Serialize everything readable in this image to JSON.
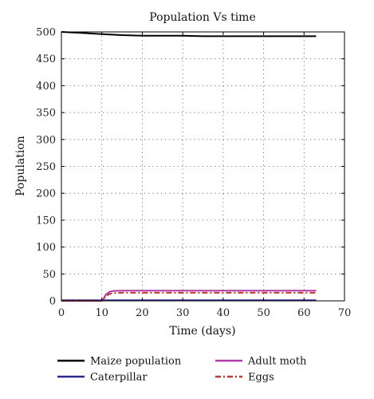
{
  "chart_data": {
    "type": "line",
    "title": "Population Vs time",
    "xlabel": "Time (days)",
    "ylabel": "Population",
    "xlim": [
      0,
      70
    ],
    "ylim": [
      0,
      500
    ],
    "xticks": [
      0,
      10,
      20,
      30,
      40,
      50,
      60,
      70
    ],
    "yticks": [
      0,
      50,
      100,
      150,
      200,
      250,
      300,
      350,
      400,
      450,
      500
    ],
    "grid": true,
    "legend_position": "bottom",
    "series": [
      {
        "name": "Maize population",
        "color": "#000000",
        "dash": "solid",
        "x": [
          0,
          5,
          10,
          15,
          20,
          25,
          30,
          35,
          40,
          45,
          50,
          55,
          60,
          63
        ],
        "y": [
          500,
          498,
          496,
          494,
          493,
          493,
          493,
          492,
          492,
          492,
          492,
          492,
          492,
          492
        ]
      },
      {
        "name": "Adult moth",
        "color": "#b03aa8",
        "dash": "solid",
        "x": [
          0,
          10,
          10.5,
          11,
          12,
          13,
          15,
          20,
          30,
          40,
          50,
          60,
          63
        ],
        "y": [
          0,
          0,
          5,
          12,
          17,
          18.5,
          19,
          19,
          19,
          19,
          19,
          19,
          19
        ]
      },
      {
        "name": "Caterpillar",
        "color": "#2a2a8c",
        "dash": "solid",
        "x": [
          0,
          10,
          20,
          30,
          40,
          50,
          60,
          63
        ],
        "y": [
          1,
          1,
          1,
          1,
          1,
          1,
          1,
          1
        ]
      },
      {
        "name": "Eggs",
        "color": "#c0392b",
        "dash": "dashdot",
        "x": [
          0,
          10,
          10.5,
          11,
          12,
          13,
          15,
          20,
          30,
          40,
          50,
          60,
          63
        ],
        "y": [
          0,
          0,
          4,
          9,
          13,
          14.5,
          15,
          15,
          15,
          15,
          15,
          15,
          15
        ]
      }
    ],
    "legend_order": [
      "Maize population",
      "Adult moth",
      "Caterpillar",
      "Eggs"
    ]
  }
}
